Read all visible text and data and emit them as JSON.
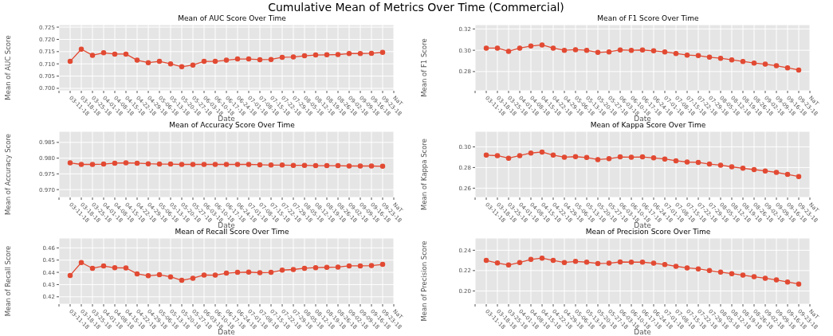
{
  "chart_data": [
    {
      "type": "line",
      "title": "Mean of AUC Score Over Time",
      "annotations": [
        "Cumulative Mean of Metrics Over Time (Commercial)"
      ],
      "xlabel": "Date",
      "ylabel": "Mean of AUC Score",
      "categories": [
        null,
        "03-11-18",
        "03-18-18",
        "03-25-18",
        "04-01-18",
        "04-08-18",
        "04-15-18",
        "04-22-18",
        "04-29-18",
        "05-06-18",
        "05-13-18",
        "05-20-18",
        "05-27-18",
        "06-03-18",
        "06-10-18",
        "06-17-18",
        "06-24-18",
        "07-01-18",
        "07-08-18",
        "07-15-18",
        "07-22-18",
        "07-29-18",
        "08-05-18",
        "08-12-18",
        "08-19-18",
        "08-26-18",
        "09-02-18",
        "09-09-18",
        "09-16-18",
        "09-23-18",
        "NaT"
      ],
      "series": [
        {
          "color": "#e24a33",
          "values": [
            null,
            0.711,
            0.716,
            0.7135,
            0.7145,
            0.714,
            0.714,
            0.7115,
            0.7105,
            0.711,
            0.71,
            0.7088,
            0.7095,
            0.711,
            0.711,
            0.7115,
            0.712,
            0.712,
            0.7117,
            0.7118,
            0.7127,
            0.7128,
            0.7133,
            0.7136,
            0.7137,
            0.7138,
            0.7142,
            0.7142,
            0.7143,
            0.7147,
            null
          ]
        }
      ],
      "ylim": [
        0.699,
        0.726
      ],
      "yticks": [
        {
          "value": 0.7,
          "label": "0.700"
        },
        {
          "value": 0.705,
          "label": "0.705"
        },
        {
          "value": 0.71,
          "label": "0.710"
        },
        {
          "value": 0.715,
          "label": "0.715"
        },
        {
          "value": 0.72,
          "label": "0.720"
        },
        {
          "value": 0.725,
          "label": "0.725"
        }
      ],
      "grid": true,
      "marker": "circle",
      "line_style": "solid"
    },
    {
      "type": "line",
      "title": "Mean of F1 Score Over Time",
      "xlabel": "Date",
      "ylabel": "Mean of F1 Score",
      "categories": [
        null,
        "03-11-18",
        "03-18-18",
        "03-25-18",
        "04-01-18",
        "04-08-18",
        "04-15-18",
        "04-22-18",
        "04-29-18",
        "05-06-18",
        "05-13-18",
        "05-20-18",
        "05-27-18",
        "06-03-18",
        "06-10-18",
        "06-17-18",
        "06-24-18",
        "07-01-18",
        "07-08-18",
        "07-15-18",
        "07-22-18",
        "07-29-18",
        "08-05-18",
        "08-12-18",
        "08-19-18",
        "08-26-18",
        "09-02-18",
        "09-09-18",
        "09-16-18",
        "09-23-18",
        "NaT"
      ],
      "series": [
        {
          "color": "#e24a33",
          "values": [
            null,
            0.302,
            0.302,
            0.299,
            0.302,
            0.304,
            0.305,
            0.302,
            0.3,
            0.3005,
            0.3,
            0.298,
            0.2985,
            0.3003,
            0.3,
            0.3003,
            0.2995,
            0.2985,
            0.297,
            0.2955,
            0.295,
            0.2935,
            0.2925,
            0.291,
            0.2895,
            0.288,
            0.287,
            0.2855,
            0.2835,
            0.2815,
            null
          ]
        }
      ],
      "ylim": [
        0.262,
        0.324
      ],
      "yticks": [
        {
          "value": 0.28,
          "label": "0.28"
        },
        {
          "value": 0.3,
          "label": "0.30"
        },
        {
          "value": 0.32,
          "label": "0.32"
        }
      ],
      "grid": true,
      "marker": "circle",
      "line_style": "solid"
    },
    {
      "type": "line",
      "title": "Mean of Accuracy Score Over Time",
      "xlabel": "Date",
      "ylabel": "Mean of Accuracy Score",
      "categories": [
        null,
        "03-11-18",
        "03-18-18",
        "03-25-18",
        "04-01-18",
        "04-08-18",
        "04-15-18",
        "04-22-18",
        "04-29-18",
        "05-06-18",
        "05-13-18",
        "05-20-18",
        "05-27-18",
        "06-03-18",
        "06-10-18",
        "06-17-18",
        "06-24-18",
        "07-01-18",
        "07-08-18",
        "07-15-18",
        "07-22-18",
        "07-29-18",
        "08-05-18",
        "08-12-18",
        "08-19-18",
        "08-26-18",
        "09-02-18",
        "09-09-18",
        "09-16-18",
        "09-23-18",
        "NaT"
      ],
      "series": [
        {
          "color": "#e24a33",
          "values": [
            null,
            0.9785,
            0.978,
            0.978,
            0.9781,
            0.9784,
            0.9785,
            0.9784,
            0.9782,
            0.9781,
            0.9781,
            0.978,
            0.978,
            0.978,
            0.978,
            0.978,
            0.978,
            0.978,
            0.9779,
            0.9778,
            0.9778,
            0.9777,
            0.9777,
            0.9776,
            0.9776,
            0.9776,
            0.9775,
            0.9775,
            0.9775,
            0.9774,
            null
          ]
        }
      ],
      "ylim": [
        0.9675,
        0.9885
      ],
      "yticks": [
        {
          "value": 0.97,
          "label": "0.970"
        },
        {
          "value": 0.975,
          "label": "0.975"
        },
        {
          "value": 0.98,
          "label": "0.980"
        },
        {
          "value": 0.985,
          "label": "0.985"
        }
      ],
      "grid": true,
      "marker": "circle",
      "line_style": "solid"
    },
    {
      "type": "line",
      "title": "Mean of Kappa Score Over Time",
      "xlabel": "Date",
      "ylabel": "Mean of Kappa Score",
      "categories": [
        null,
        "03-11-18",
        "03-18-18",
        "03-25-18",
        "04-01-18",
        "04-08-18",
        "04-15-18",
        "04-22-18",
        "04-29-18",
        "05-06-18",
        "05-13-18",
        "05-20-18",
        "05-27-18",
        "06-03-18",
        "06-10-18",
        "06-17-18",
        "06-24-18",
        "07-01-18",
        "07-08-18",
        "07-15-18",
        "07-22-18",
        "07-29-18",
        "08-05-18",
        "08-12-18",
        "08-19-18",
        "08-26-18",
        "09-02-18",
        "09-09-18",
        "09-16-18",
        "09-23-18",
        "NaT"
      ],
      "series": [
        {
          "color": "#e24a33",
          "values": [
            null,
            0.292,
            0.2915,
            0.289,
            0.2915,
            0.294,
            0.295,
            0.292,
            0.29,
            0.2905,
            0.2897,
            0.2877,
            0.2885,
            0.2903,
            0.29,
            0.2903,
            0.2893,
            0.2883,
            0.2865,
            0.2853,
            0.285,
            0.2833,
            0.2823,
            0.2807,
            0.2793,
            0.278,
            0.2767,
            0.2753,
            0.2733,
            0.2713,
            null
          ]
        }
      ],
      "ylim": [
        0.251,
        0.315
      ],
      "yticks": [
        {
          "value": 0.26,
          "label": "0.26"
        },
        {
          "value": 0.28,
          "label": "0.28"
        },
        {
          "value": 0.3,
          "label": "0.30"
        }
      ],
      "grid": true,
      "marker": "circle",
      "line_style": "solid"
    },
    {
      "type": "line",
      "title": "Mean of Recall Score Over Time",
      "xlabel": "Date",
      "ylabel": "Mean of Recall Score",
      "categories": [
        null,
        "03-11-18",
        "03-18-18",
        "03-25-18",
        "04-01-18",
        "04-08-18",
        "04-15-18",
        "04-22-18",
        "04-29-18",
        "05-06-18",
        "05-13-18",
        "05-20-18",
        "05-27-18",
        "06-03-18",
        "06-10-18",
        "06-17-18",
        "06-24-18",
        "07-01-18",
        "07-08-18",
        "07-15-18",
        "07-22-18",
        "07-29-18",
        "08-05-18",
        "08-12-18",
        "08-19-18",
        "08-26-18",
        "09-02-18",
        "09-09-18",
        "09-16-18",
        "09-23-18",
        "NaT"
      ],
      "series": [
        {
          "color": "#e24a33",
          "values": [
            null,
            0.4375,
            0.448,
            0.4433,
            0.4452,
            0.4437,
            0.4436,
            0.4388,
            0.4372,
            0.438,
            0.4363,
            0.4335,
            0.4352,
            0.4378,
            0.4377,
            0.4393,
            0.44,
            0.4402,
            0.4397,
            0.44,
            0.4418,
            0.4423,
            0.4433,
            0.4438,
            0.4441,
            0.4443,
            0.4453,
            0.4453,
            0.4455,
            0.4465,
            null
          ]
        }
      ],
      "ylim": [
        0.414,
        0.468
      ],
      "yticks": [
        {
          "value": 0.42,
          "label": "0.42"
        },
        {
          "value": 0.43,
          "label": "0.43"
        },
        {
          "value": 0.44,
          "label": "0.44"
        },
        {
          "value": 0.45,
          "label": "0.45"
        },
        {
          "value": 0.46,
          "label": "0.46"
        }
      ],
      "grid": true,
      "marker": "circle",
      "line_style": "solid"
    },
    {
      "type": "line",
      "title": "Mean of Precision Score Over Time",
      "xlabel": "Date",
      "ylabel": "Mean of Precision Score",
      "categories": [
        null,
        "03-11-18",
        "03-18-18",
        "03-25-18",
        "04-01-18",
        "04-08-18",
        "04-15-18",
        "04-22-18",
        "04-29-18",
        "05-06-18",
        "05-13-18",
        "05-20-18",
        "05-27-18",
        "06-03-18",
        "06-10-18",
        "06-17-18",
        "06-24-18",
        "07-01-18",
        "07-08-18",
        "07-15-18",
        "07-22-18",
        "07-29-18",
        "08-05-18",
        "08-12-18",
        "08-19-18",
        "08-26-18",
        "09-02-18",
        "09-09-18",
        "09-16-18",
        "09-23-18",
        "NaT"
      ],
      "series": [
        {
          "color": "#e24a33",
          "values": [
            null,
            0.23,
            0.2275,
            0.2255,
            0.228,
            0.231,
            0.2323,
            0.23,
            0.228,
            0.229,
            0.2283,
            0.227,
            0.2273,
            0.2285,
            0.2283,
            0.2283,
            0.2273,
            0.226,
            0.2242,
            0.2227,
            0.2217,
            0.22,
            0.2185,
            0.217,
            0.2155,
            0.214,
            0.2125,
            0.2108,
            0.2088,
            0.2068,
            null
          ]
        }
      ],
      "ylim": [
        0.187,
        0.252
      ],
      "yticks": [
        {
          "value": 0.2,
          "label": "0.20"
        },
        {
          "value": 0.22,
          "label": "0.22"
        },
        {
          "value": 0.24,
          "label": "0.24"
        }
      ],
      "grid": true,
      "marker": "circle",
      "line_style": "solid"
    }
  ]
}
